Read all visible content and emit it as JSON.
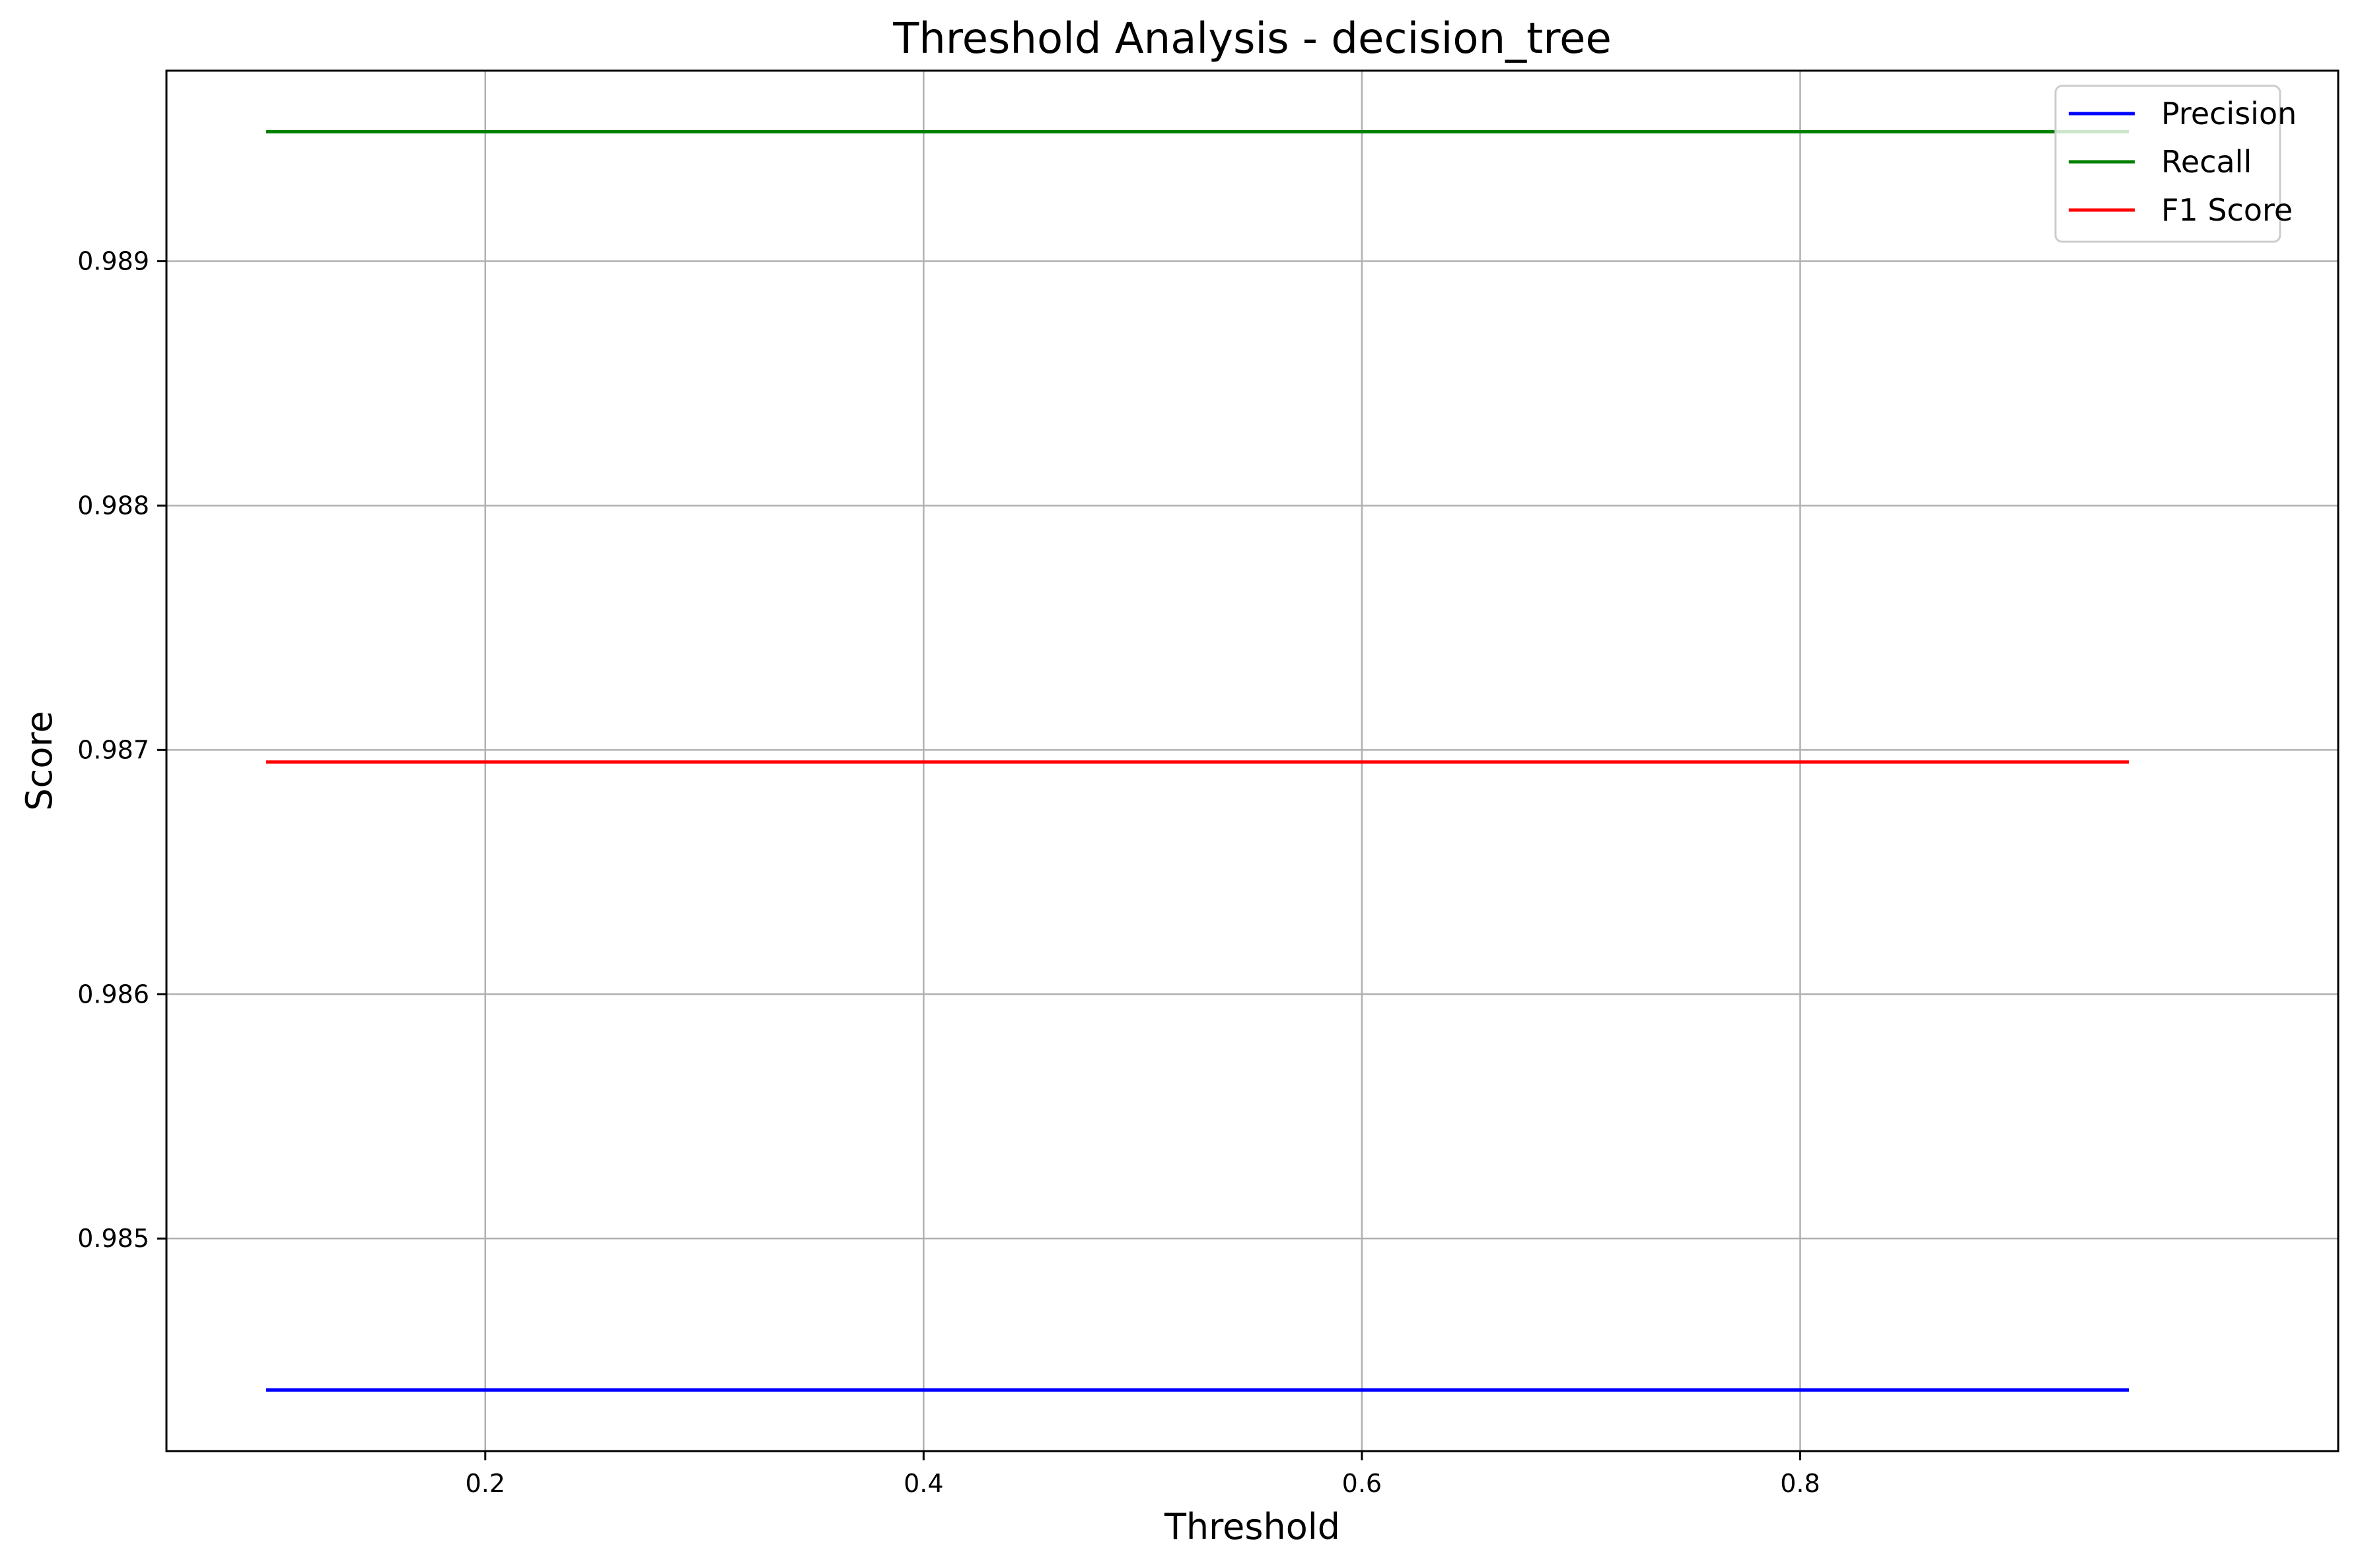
{
  "chart_data": {
    "type": "line",
    "title": "Threshold Analysis - decision_tree",
    "xlabel": "Threshold",
    "ylabel": "Score",
    "xlim": [
      0.0545,
      1.0455
    ],
    "ylim": [
      0.98413,
      0.98978
    ],
    "xticks": [
      "0.2",
      "0.4",
      "0.6",
      "0.8"
    ],
    "yticks": [
      "0.985",
      "0.986",
      "0.987",
      "0.988",
      "0.989"
    ],
    "grid": true,
    "legend_position": "upper right",
    "x": [
      0.1,
      0.15,
      0.2,
      0.25,
      0.3,
      0.35,
      0.4,
      0.45,
      0.5,
      0.55,
      0.6,
      0.65,
      0.7,
      0.75,
      0.8,
      0.85,
      0.9,
      0.95
    ],
    "series": [
      {
        "name": "Precision",
        "color": "#0000ff",
        "values": [
          0.98438,
          0.98438,
          0.98438,
          0.98438,
          0.98438,
          0.98438,
          0.98438,
          0.98438,
          0.98438,
          0.98438,
          0.98438,
          0.98438,
          0.98438,
          0.98438,
          0.98438,
          0.98438,
          0.98438,
          0.98438
        ]
      },
      {
        "name": "Recall",
        "color": "#008000",
        "values": [
          0.98953,
          0.98953,
          0.98953,
          0.98953,
          0.98953,
          0.98953,
          0.98953,
          0.98953,
          0.98953,
          0.98953,
          0.98953,
          0.98953,
          0.98953,
          0.98953,
          0.98953,
          0.98953,
          0.98953,
          0.98953
        ]
      },
      {
        "name": "F1 Score",
        "color": "#ff0000",
        "values": [
          0.98695,
          0.98695,
          0.98695,
          0.98695,
          0.98695,
          0.98695,
          0.98695,
          0.98695,
          0.98695,
          0.98695,
          0.98695,
          0.98695,
          0.98695,
          0.98695,
          0.98695,
          0.98695,
          0.98695,
          0.98695
        ]
      }
    ]
  }
}
